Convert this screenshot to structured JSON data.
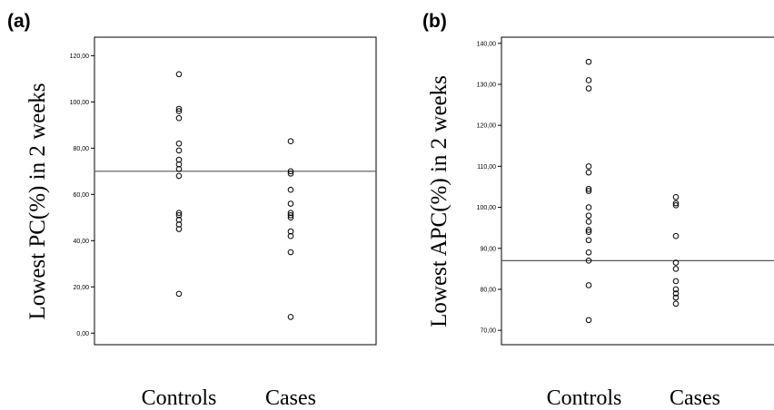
{
  "chart_data": [
    {
      "type": "scatter",
      "panel_label": "(a)",
      "ylabel": "Lowest PC(%) in 2 weeks",
      "categories": [
        "Controls",
        "Cases"
      ],
      "ylim": [
        -5,
        128
      ],
      "yticks": [
        "0,00",
        "20,00",
        "40,00",
        "60,00",
        "80,00",
        "100,00",
        "120,00"
      ],
      "ytick_values": [
        0,
        20,
        40,
        60,
        80,
        100,
        120
      ],
      "reference_line": 70,
      "grid": false,
      "series": [
        {
          "category": "Controls",
          "values": [
            112,
            97,
            96,
            93,
            82,
            79,
            75,
            73,
            71,
            68,
            52,
            51,
            49,
            47,
            45,
            17
          ]
        },
        {
          "category": "Cases",
          "values": [
            83,
            70,
            69,
            62,
            56,
            52,
            51,
            50,
            44,
            42,
            35,
            7
          ]
        }
      ]
    },
    {
      "type": "scatter",
      "panel_label": "(b)",
      "ylabel": "Lowest APC(%) in 2 weeks",
      "categories": [
        "Controls",
        "Cases"
      ],
      "ylim": [
        66.5,
        141.5
      ],
      "yticks": [
        "70,00",
        "80,00",
        "90,00",
        "100,00",
        "110,00",
        "120,00",
        "130,00",
        "140,00"
      ],
      "ytick_values": [
        70,
        80,
        90,
        100,
        110,
        120,
        130,
        140
      ],
      "reference_line": 87,
      "grid": false,
      "series": [
        {
          "category": "Controls",
          "values": [
            135.5,
            131,
            129,
            110,
            108.5,
            104.5,
            104,
            100,
            98,
            96.5,
            94.5,
            94,
            92,
            89,
            87,
            81,
            72.5
          ]
        },
        {
          "category": "Cases",
          "values": [
            102.5,
            101,
            100.5,
            93,
            86.5,
            85,
            82,
            80,
            79,
            78,
            76.5
          ]
        }
      ]
    }
  ]
}
